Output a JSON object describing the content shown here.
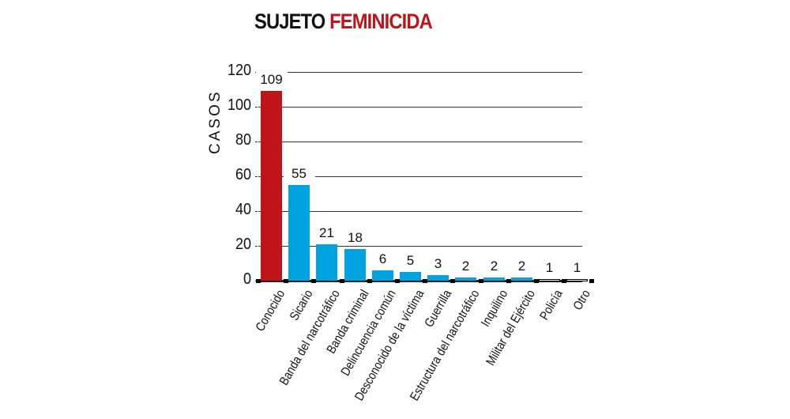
{
  "title": {
    "part1": "SUJETO",
    "part2": "FEMINICIDA"
  },
  "colors": {
    "highlight": "#c0141b",
    "primary": "#00a2e0",
    "outline": "#000000"
  },
  "chart_data": {
    "type": "bar",
    "title": "SUJETO FEMINICIDA",
    "xlabel": "",
    "ylabel": "CASOS",
    "ylim": [
      0,
      120
    ],
    "yticks": [
      0,
      20,
      40,
      60,
      80,
      100,
      120
    ],
    "grid": true,
    "categories": [
      "Conocido",
      "Sicario",
      "Banda del narcotráfico",
      "Banda criminal",
      "Delincuencia común",
      "Desconocido de la víctima",
      "Guerrilla",
      "Estructura del narcotráfico",
      "Inquilino",
      "Militar del Ejército",
      "Policía",
      "Otro"
    ],
    "values": [
      109,
      55,
      21,
      18,
      6,
      5,
      3,
      2,
      2,
      2,
      1,
      1
    ],
    "value_labels": [
      "109",
      "55",
      "21",
      "18",
      "6",
      "5",
      "3",
      "2",
      "2",
      "2",
      "1",
      "1"
    ],
    "bar_colors": [
      "#c0141b",
      "#00a2e0",
      "#00a2e0",
      "#00a2e0",
      "#00a2e0",
      "#00a2e0",
      "#00a2e0",
      "#00a2e0",
      "#00a2e0",
      "#00a2e0",
      "#ffffff",
      "#ffffff"
    ]
  },
  "axis": {
    "ylabel": "CASOS",
    "ticks": [
      "0",
      "20",
      "40",
      "60",
      "80",
      "100",
      "120"
    ]
  }
}
